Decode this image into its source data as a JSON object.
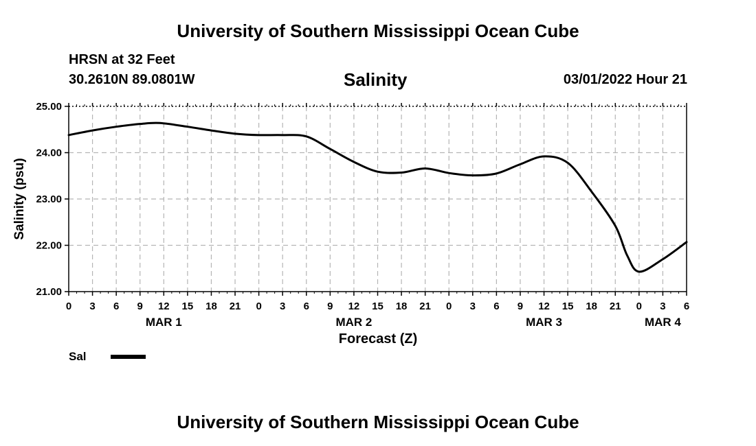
{
  "header": {
    "title": "University of Southern Mississippi Ocean Cube",
    "station": "HRSN at 32 Feet",
    "coords": "30.2610N  89.0801W",
    "chart_title": "Salinity",
    "datetime": "03/01/2022 Hour 21"
  },
  "footer": {
    "title": "University of Southern Mississippi Ocean Cube"
  },
  "legend": {
    "label": "Sal",
    "color": "#000000"
  },
  "chart_data": {
    "type": "line",
    "title": "Salinity",
    "xlabel": "Forecast (Z)",
    "ylabel": "Salinity (psu)",
    "ylim": [
      21.0,
      25.0
    ],
    "yticks": [
      "21.00",
      "22.00",
      "23.00",
      "24.00",
      "25.00"
    ],
    "xlim_hours": [
      0,
      78
    ],
    "xtick_labels": [
      "0",
      "3",
      "6",
      "9",
      "12",
      "15",
      "18",
      "21",
      "0",
      "3",
      "6",
      "9",
      "12",
      "15",
      "18",
      "21",
      "0",
      "3",
      "6",
      "9",
      "12",
      "15",
      "18",
      "21",
      "0",
      "3",
      "6"
    ],
    "date_labels": [
      {
        "label": "MAR 1",
        "hour": 12
      },
      {
        "label": "MAR 2",
        "hour": 36
      },
      {
        "label": "MAR 3",
        "hour": 60
      },
      {
        "label": "MAR 4",
        "hour": 75
      }
    ],
    "grid": true,
    "series": [
      {
        "name": "Sal",
        "x_hours": [
          0,
          3,
          6,
          9,
          11.5,
          15,
          18,
          21,
          24,
          27,
          30,
          33,
          36,
          39,
          42,
          45,
          48,
          51,
          54,
          57,
          60,
          63,
          66,
          69,
          70.5,
          72,
          75,
          78
        ],
        "values": [
          24.38,
          24.48,
          24.56,
          24.62,
          24.64,
          24.56,
          24.48,
          24.41,
          24.38,
          24.38,
          24.35,
          24.08,
          23.8,
          23.59,
          23.57,
          23.66,
          23.56,
          23.51,
          23.55,
          23.75,
          23.92,
          23.78,
          23.16,
          22.42,
          21.78,
          21.43,
          21.7,
          22.07
        ]
      }
    ]
  }
}
